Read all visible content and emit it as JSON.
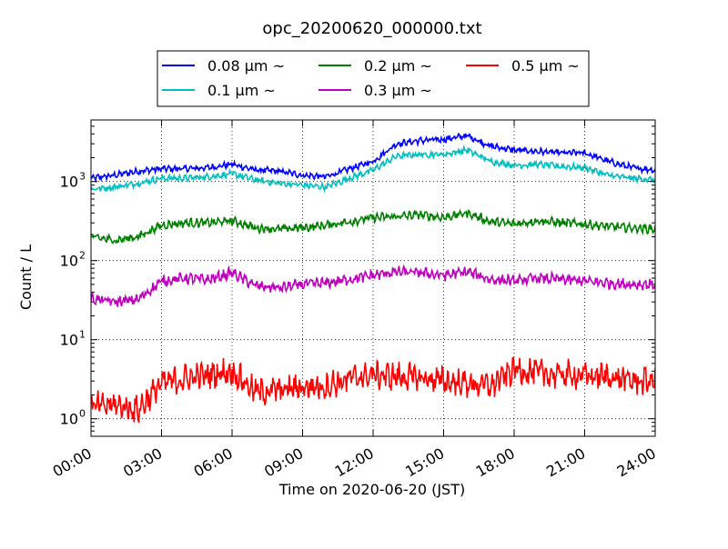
{
  "chart_data": {
    "type": "line",
    "title": "opc_20200620_000000.txt",
    "xlabel": "Time on 2020-06-20 (JST)",
    "ylabel": "Count / L",
    "y_scale": "log",
    "ylim": [
      0.6,
      6000
    ],
    "xlim": [
      "00:00",
      "24:00"
    ],
    "x_ticks": [
      "00:00",
      "03:00",
      "06:00",
      "09:00",
      "12:00",
      "15:00",
      "18:00",
      "21:00",
      "24:00"
    ],
    "y_ticks": [
      {
        "value": 1,
        "label": "10",
        "exp": "0"
      },
      {
        "value": 10,
        "label": "10",
        "exp": "1"
      },
      {
        "value": 100,
        "label": "10",
        "exp": "2"
      },
      {
        "value": 1000,
        "label": "10",
        "exp": "3"
      }
    ],
    "grid": true,
    "legend_position": "top",
    "x": [
      "00:00",
      "01:00",
      "02:00",
      "03:00",
      "04:00",
      "05:00",
      "06:00",
      "07:00",
      "08:00",
      "09:00",
      "10:00",
      "11:00",
      "12:00",
      "13:00",
      "14:00",
      "15:00",
      "16:00",
      "17:00",
      "18:00",
      "19:00",
      "20:00",
      "21:00",
      "22:00",
      "23:00",
      "24:00"
    ],
    "series": [
      {
        "name": "0.08 μm ~",
        "color": "#0000ff",
        "values": [
          1100,
          1200,
          1350,
          1450,
          1450,
          1500,
          1650,
          1400,
          1350,
          1200,
          1150,
          1450,
          1800,
          3000,
          3300,
          3400,
          3800,
          2800,
          2500,
          2400,
          2300,
          2300,
          1800,
          1500,
          1400
        ]
      },
      {
        "name": "0.1 μm ~",
        "color": "#00bfbf",
        "values": [
          800,
          850,
          950,
          1100,
          1100,
          1150,
          1250,
          1050,
          950,
          900,
          850,
          1100,
          1400,
          2100,
          2200,
          2200,
          2500,
          1800,
          1600,
          1650,
          1550,
          1500,
          1200,
          1100,
          1050
        ]
      },
      {
        "name": "0.2 μm ~",
        "color": "#008000",
        "values": [
          200,
          180,
          200,
          280,
          300,
          300,
          320,
          260,
          250,
          260,
          280,
          310,
          350,
          360,
          380,
          350,
          400,
          310,
          290,
          320,
          300,
          290,
          270,
          260,
          250
        ]
      },
      {
        "name": "0.3 μm ~",
        "color": "#bf00bf",
        "values": [
          33,
          30,
          32,
          55,
          60,
          57,
          70,
          48,
          45,
          50,
          52,
          58,
          65,
          72,
          70,
          65,
          72,
          58,
          55,
          60,
          58,
          55,
          52,
          50,
          50
        ]
      },
      {
        "name": "0.5 μm ~",
        "color": "#ff0000",
        "values": [
          1.4,
          1.5,
          1.3,
          2.8,
          3.2,
          3.6,
          4.0,
          2.2,
          2.3,
          2.5,
          2.6,
          3.2,
          3.6,
          3.4,
          3.3,
          3.0,
          2.8,
          2.6,
          4.2,
          3.8,
          3.6,
          3.5,
          3.4,
          3.0,
          3.0
        ]
      }
    ]
  }
}
